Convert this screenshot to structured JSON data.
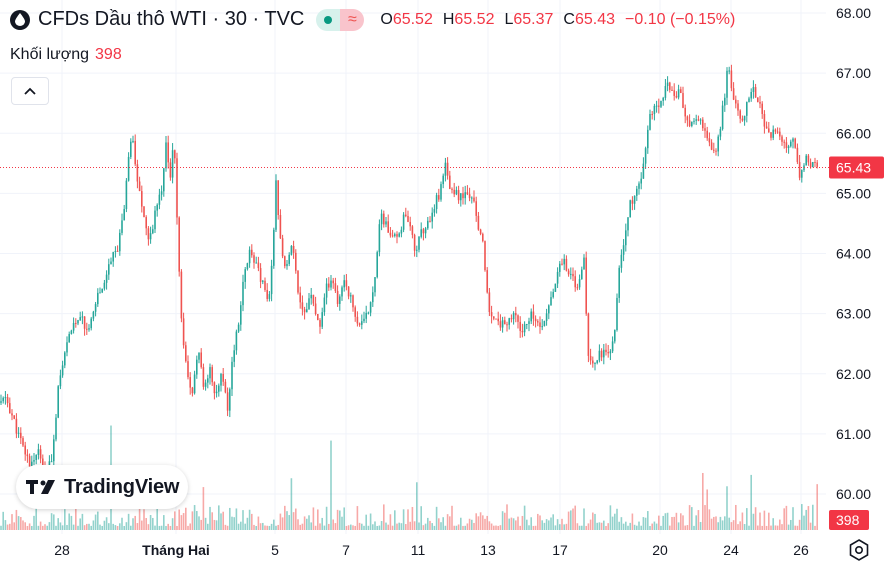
{
  "header": {
    "symbol_title": "CFDs Dầu thô WTI · 30 · TVC",
    "o_label": "O",
    "o_value": "65.52",
    "h_label": "H",
    "h_value": "65.52",
    "l_label": "L",
    "l_value": "65.37",
    "c_label": "C",
    "c_value": "65.43",
    "change": "−0.10 (−0.15%)",
    "approx_symbol": "≈"
  },
  "volume_legend": {
    "label": "Khối lượng",
    "value": "398"
  },
  "logo": {
    "text": "TradingView"
  },
  "icons": [
    "drop-icon",
    "chevron-up-icon",
    "tradingview-logo-icon",
    "settings-icon"
  ],
  "colors": {
    "up": "#26a69a",
    "down": "#ef5350",
    "price_label": "#f23645",
    "grid": "#f0f3fa"
  },
  "chart_data": {
    "type": "candlestick",
    "y_ticks": [
      "68.00",
      "67.00",
      "66.00",
      "65.00",
      "64.00",
      "63.00",
      "62.00",
      "61.00",
      "60.00"
    ],
    "ylim": [
      59.6,
      68.1
    ],
    "x_ticks": [
      "28",
      "Tháng Hai",
      "5",
      "7",
      "11",
      "13",
      "17",
      "20",
      "24",
      "26"
    ],
    "last_price": "65.43",
    "last_volume": "398",
    "grid": true,
    "path": [
      [
        0,
        61.5
      ],
      [
        6,
        61.6
      ],
      [
        14,
        61.2
      ],
      [
        22,
        60.8
      ],
      [
        30,
        60.5
      ],
      [
        38,
        60.7
      ],
      [
        46,
        60.3
      ],
      [
        52,
        60.6
      ],
      [
        58,
        61.7
      ],
      [
        64,
        62.3
      ],
      [
        72,
        62.8
      ],
      [
        80,
        63.0
      ],
      [
        88,
        62.6
      ],
      [
        96,
        63.2
      ],
      [
        104,
        63.5
      ],
      [
        112,
        63.9
      ],
      [
        118,
        64.1
      ],
      [
        124,
        64.7
      ],
      [
        128,
        65.6
      ],
      [
        132,
        66.0
      ],
      [
        138,
        65.2
      ],
      [
        144,
        64.6
      ],
      [
        150,
        64.2
      ],
      [
        156,
        64.8
      ],
      [
        162,
        65.0
      ],
      [
        166,
        65.8
      ],
      [
        170,
        65.2
      ],
      [
        174,
        65.9
      ],
      [
        178,
        64.2
      ],
      [
        182,
        62.7
      ],
      [
        186,
        62.1
      ],
      [
        192,
        61.7
      ],
      [
        198,
        62.4
      ],
      [
        204,
        61.8
      ],
      [
        210,
        62.1
      ],
      [
        216,
        61.6
      ],
      [
        222,
        62.0
      ],
      [
        228,
        61.4
      ],
      [
        232,
        62.2
      ],
      [
        238,
        62.8
      ],
      [
        244,
        63.6
      ],
      [
        250,
        64.1
      ],
      [
        256,
        63.8
      ],
      [
        262,
        63.5
      ],
      [
        268,
        63.2
      ],
      [
        272,
        63.8
      ],
      [
        276,
        65.3
      ],
      [
        280,
        64.2
      ],
      [
        286,
        63.8
      ],
      [
        292,
        64.2
      ],
      [
        298,
        63.4
      ],
      [
        304,
        63.0
      ],
      [
        310,
        63.3
      ],
      [
        316,
        63.0
      ],
      [
        320,
        62.7
      ],
      [
        326,
        63.4
      ],
      [
        332,
        63.6
      ],
      [
        338,
        63.1
      ],
      [
        344,
        63.6
      ],
      [
        350,
        63.3
      ],
      [
        356,
        62.9
      ],
      [
        362,
        62.8
      ],
      [
        368,
        63.0
      ],
      [
        374,
        63.5
      ],
      [
        380,
        64.6
      ],
      [
        386,
        64.5
      ],
      [
        392,
        64.2
      ],
      [
        398,
        64.3
      ],
      [
        404,
        64.6
      ],
      [
        410,
        64.4
      ],
      [
        416,
        64.0
      ],
      [
        422,
        64.4
      ],
      [
        428,
        64.5
      ],
      [
        434,
        64.8
      ],
      [
        440,
        65.0
      ],
      [
        446,
        65.5
      ],
      [
        450,
        65.1
      ],
      [
        456,
        65.0
      ],
      [
        462,
        64.9
      ],
      [
        468,
        65.0
      ],
      [
        474,
        64.8
      ],
      [
        478,
        64.5
      ],
      [
        482,
        64.3
      ],
      [
        486,
        63.5
      ],
      [
        490,
        62.9
      ],
      [
        496,
        63.0
      ],
      [
        502,
        62.8
      ],
      [
        508,
        62.9
      ],
      [
        514,
        63.0
      ],
      [
        520,
        62.7
      ],
      [
        526,
        62.9
      ],
      [
        532,
        63.0
      ],
      [
        538,
        62.9
      ],
      [
        544,
        62.8
      ],
      [
        550,
        63.2
      ],
      [
        556,
        63.6
      ],
      [
        562,
        63.9
      ],
      [
        568,
        63.7
      ],
      [
        574,
        63.5
      ],
      [
        580,
        63.5
      ],
      [
        584,
        64.0
      ],
      [
        588,
        62.3
      ],
      [
        592,
        62.1
      ],
      [
        598,
        62.3
      ],
      [
        604,
        62.4
      ],
      [
        610,
        62.3
      ],
      [
        614,
        62.6
      ],
      [
        618,
        63.6
      ],
      [
        622,
        64.0
      ],
      [
        626,
        64.4
      ],
      [
        630,
        64.8
      ],
      [
        636,
        65.0
      ],
      [
        642,
        65.2
      ],
      [
        646,
        65.8
      ],
      [
        650,
        66.3
      ],
      [
        656,
        66.4
      ],
      [
        662,
        66.5
      ],
      [
        668,
        66.9
      ],
      [
        674,
        66.6
      ],
      [
        680,
        66.7
      ],
      [
        686,
        66.2
      ],
      [
        692,
        66.1
      ],
      [
        698,
        66.3
      ],
      [
        704,
        66.0
      ],
      [
        710,
        65.8
      ],
      [
        716,
        65.7
      ],
      [
        722,
        66.3
      ],
      [
        728,
        67.1
      ],
      [
        734,
        66.5
      ],
      [
        740,
        66.2
      ],
      [
        746,
        66.4
      ],
      [
        752,
        66.8
      ],
      [
        758,
        66.6
      ],
      [
        764,
        66.1
      ],
      [
        770,
        65.9
      ],
      [
        776,
        66.1
      ],
      [
        782,
        65.8
      ],
      [
        788,
        65.7
      ],
      [
        794,
        65.9
      ],
      [
        800,
        65.3
      ],
      [
        806,
        65.6
      ],
      [
        812,
        65.5
      ],
      [
        818,
        65.43
      ]
    ]
  }
}
